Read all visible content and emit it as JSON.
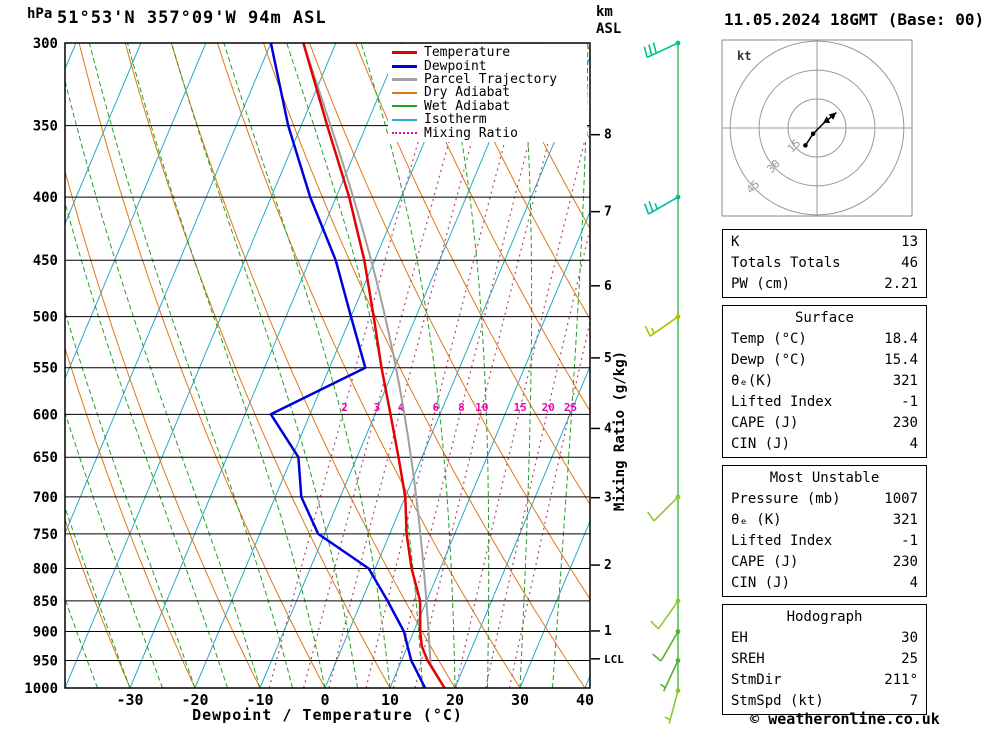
{
  "header": {
    "station_title": "51°53'N 357°09'W 94m ASL",
    "datetime_title": "11.05.2024 18GMT (Base: 00)",
    "pressure_unit": "hPa",
    "km_label": "km",
    "asl_label": "ASL"
  },
  "axes": {
    "xlabel": "Dewpoint / Temperature (°C)",
    "right_label": "Mixing Ratio (g/kg)",
    "pressure_ticks": [
      300,
      350,
      400,
      450,
      500,
      550,
      600,
      650,
      700,
      750,
      800,
      850,
      900,
      950,
      1000
    ],
    "temp_ticks": [
      -30,
      -20,
      -10,
      0,
      10,
      20,
      30,
      40
    ],
    "km_ticks": [
      {
        "label": "8",
        "p": 356
      },
      {
        "label": "7",
        "p": 411
      },
      {
        "label": "6",
        "p": 472
      },
      {
        "label": "5",
        "p": 540
      },
      {
        "label": "4",
        "p": 616
      },
      {
        "label": "3",
        "p": 701
      },
      {
        "label": "2",
        "p": 795
      },
      {
        "label": "1",
        "p": 899
      },
      {
        "label": "LCL",
        "p": 947
      }
    ]
  },
  "legend": {
    "items": [
      {
        "label": "Temperature",
        "color": "#e60000",
        "style": "solid",
        "weight": 3
      },
      {
        "label": "Dewpoint",
        "color": "#0000dd",
        "style": "solid",
        "weight": 3
      },
      {
        "label": "Parcel Trajectory",
        "color": "#a0a0a0",
        "style": "solid",
        "weight": 3
      },
      {
        "label": "Dry Adiabat",
        "color": "#e07818",
        "style": "solid",
        "weight": 2
      },
      {
        "label": "Wet Adiabat",
        "color": "#22a022",
        "style": "solid",
        "weight": 2
      },
      {
        "label": "Isotherm",
        "color": "#2aa8c8",
        "style": "solid",
        "weight": 2
      },
      {
        "label": "Mixing Ratio",
        "color": "#ee00bb",
        "style": "dotted",
        "weight": 2
      }
    ]
  },
  "chart_data": {
    "type": "skewt-log-p",
    "pressure_range": [
      300,
      1000
    ],
    "sounding": {
      "pressure": [
        1000,
        950,
        925,
        900,
        850,
        800,
        750,
        700,
        650,
        600,
        550,
        500,
        450,
        400,
        350,
        300
      ],
      "temperature": [
        18.4,
        14.0,
        12.2,
        11.0,
        9.0,
        5.6,
        2.6,
        0.0,
        -3.6,
        -7.6,
        -12.0,
        -16.5,
        -21.6,
        -28.0,
        -36.0,
        -45.0
      ],
      "dewpoint": [
        15.4,
        11.5,
        10.0,
        8.5,
        4.0,
        -1.0,
        -11.0,
        -16.0,
        -19.0,
        -26.0,
        -14.5,
        -20.0,
        -26.0,
        -34.0,
        -42.0,
        -50.0
      ]
    },
    "parcel": {
      "surface_temp": 18.4,
      "surface_dewp": 15.4,
      "lcl_hpa": 947
    },
    "mixing_ratio_lines": [
      2,
      3,
      4,
      6,
      8,
      10,
      15,
      20,
      25
    ],
    "wind_barbs": [
      {
        "p": 300,
        "dir": 245,
        "spd": 30,
        "color": "#00c878"
      },
      {
        "p": 400,
        "dir": 240,
        "spd": 25,
        "color": "#00b8a0"
      },
      {
        "p": 500,
        "dir": 235,
        "spd": 15,
        "color": "#a0c800"
      },
      {
        "p": 700,
        "dir": 225,
        "spd": 10,
        "color": "#8cc832"
      },
      {
        "p": 850,
        "dir": 215,
        "spd": 10,
        "color": "#8cc832"
      },
      {
        "p": 900,
        "dir": 210,
        "spd": 10,
        "color": "#50b432"
      },
      {
        "p": 950,
        "dir": 205,
        "spd": 5,
        "color": "#50b432"
      },
      {
        "p": 1005,
        "dir": 195,
        "spd": 5,
        "color": "#8cc832"
      }
    ],
    "hodograph": {
      "unit_label": "kt",
      "rings_kt": [
        15,
        30,
        45
      ],
      "trace_uv": [
        [
          -6,
          -9
        ],
        [
          -2,
          -3
        ],
        [
          3,
          2
        ],
        [
          10,
          8
        ]
      ],
      "storm_uv": [
        5,
        4
      ],
      "storm_dir_deg": 211,
      "storm_speed_kt": 7
    }
  },
  "tables": [
    {
      "title": null,
      "rows": [
        [
          "K",
          "13"
        ],
        [
          "Totals Totals",
          "46"
        ],
        [
          "PW (cm)",
          "2.21"
        ]
      ]
    },
    {
      "title": "Surface",
      "rows": [
        [
          "Temp (°C)",
          "18.4"
        ],
        [
          "Dewp (°C)",
          "15.4"
        ],
        [
          "θₑ(K)",
          "321"
        ],
        [
          "Lifted Index",
          "-1"
        ],
        [
          "CAPE (J)",
          "230"
        ],
        [
          "CIN (J)",
          "4"
        ]
      ]
    },
    {
      "title": "Most Unstable",
      "rows": [
        [
          "Pressure (mb)",
          "1007"
        ],
        [
          "θₑ (K)",
          "321"
        ],
        [
          "Lifted Index",
          "-1"
        ],
        [
          "CAPE (J)",
          "230"
        ],
        [
          "CIN (J)",
          "4"
        ]
      ]
    },
    {
      "title": "Hodograph",
      "rows": [
        [
          "EH",
          "30"
        ],
        [
          "SREH",
          "25"
        ],
        [
          "StmDir",
          "211°"
        ],
        [
          "StmSpd (kt)",
          "7"
        ]
      ]
    }
  ],
  "footer": {
    "copyright": "© weatheronline.co.uk"
  },
  "colors": {
    "temperature": "#e60000",
    "dewpoint": "#0000dd",
    "parcel": "#a0a0a0",
    "dry_adiabat": "#e07818",
    "wet_adiabat": "#22a022",
    "isotherm": "#2aa8c8",
    "mixing_line": "#b04868",
    "mixing_label": "#ee00bb",
    "isobar": "#000000",
    "wind_staff": "#2db52d",
    "hodo_ring": "#999999",
    "hodo_trace": "#000000"
  }
}
